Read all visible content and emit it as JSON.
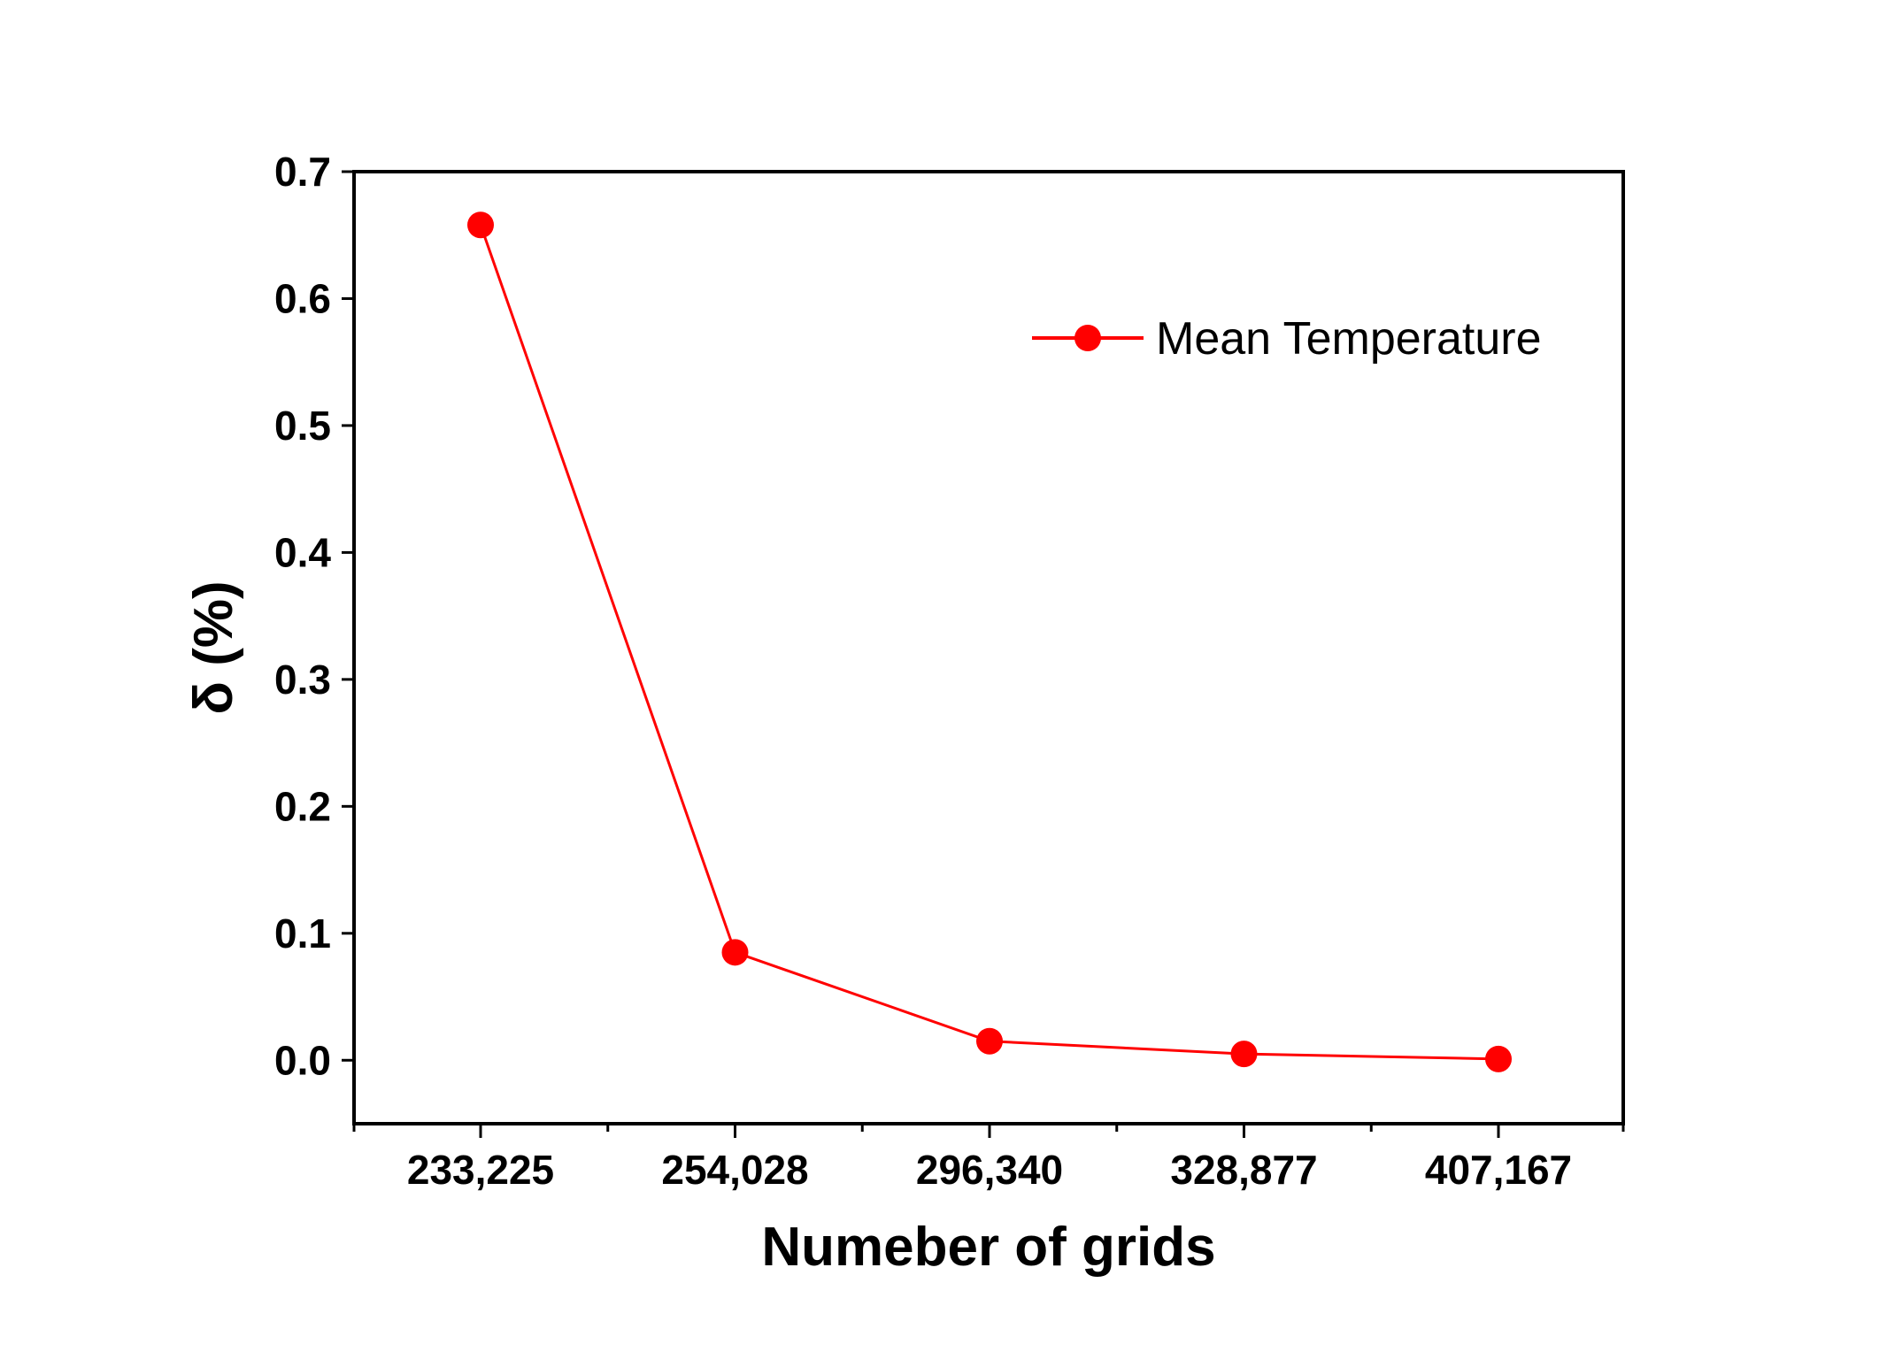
{
  "chart_data": {
    "type": "line",
    "title": "",
    "xlabel": "Numeber of grids",
    "ylabel": "δ (%)",
    "categories": [
      "233,225",
      "254,028",
      "296,340",
      "328,877",
      "407,167"
    ],
    "series": [
      {
        "name": "Mean Temperature",
        "values": [
          0.658,
          0.085,
          0.015,
          0.005,
          0.001
        ],
        "color": "#ff0000",
        "marker": "circle"
      }
    ],
    "ylim": [
      -0.05,
      0.7
    ],
    "yticks": [
      {
        "value": 0.0,
        "label": "0.0"
      },
      {
        "value": 0.1,
        "label": "0.1"
      },
      {
        "value": 0.2,
        "label": "0.2"
      },
      {
        "value": 0.3,
        "label": "0.3"
      },
      {
        "value": 0.4,
        "label": "0.4"
      },
      {
        "value": 0.5,
        "label": "0.5"
      },
      {
        "value": 0.6,
        "label": "0.6"
      },
      {
        "value": 0.7,
        "label": "0.7"
      }
    ],
    "grid": false,
    "legend_position": "top-right"
  }
}
